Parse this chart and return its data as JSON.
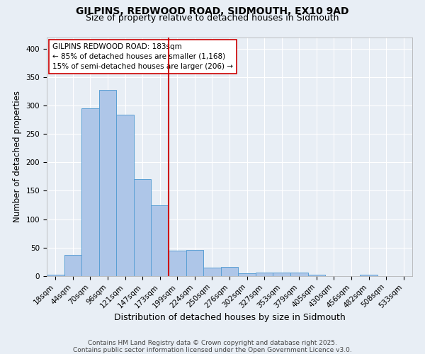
{
  "title": "GILPINS, REDWOOD ROAD, SIDMOUTH, EX10 9AD",
  "subtitle": "Size of property relative to detached houses in Sidmouth",
  "xlabel": "Distribution of detached houses by size in Sidmouth",
  "ylabel": "Number of detached properties",
  "bin_labels": [
    "18sqm",
    "44sqm",
    "70sqm",
    "96sqm",
    "121sqm",
    "147sqm",
    "173sqm",
    "199sqm",
    "224sqm",
    "250sqm",
    "276sqm",
    "302sqm",
    "327sqm",
    "353sqm",
    "379sqm",
    "405sqm",
    "430sqm",
    "456sqm",
    "482sqm",
    "508sqm",
    "533sqm"
  ],
  "bar_values": [
    3,
    37,
    295,
    327,
    284,
    170,
    125,
    45,
    46,
    15,
    16,
    5,
    6,
    6,
    6,
    2,
    0,
    0,
    2,
    0,
    0
  ],
  "bar_color": "#aec6e8",
  "bar_edge_color": "#5a9fd4",
  "vline_color": "#cc0000",
  "vline_pos": 6.5,
  "annotation_box_text": "GILPINS REDWOOD ROAD: 183sqm\n← 85% of detached houses are smaller (1,168)\n15% of semi-detached houses are larger (206) →",
  "annotation_fontsize": 7.5,
  "annotation_box_color": "#ffffff",
  "annotation_box_edgecolor": "#cc0000",
  "footer_text": "Contains HM Land Registry data © Crown copyright and database right 2025.\nContains public sector information licensed under the Open Government Licence v3.0.",
  "background_color": "#e8eef5",
  "ylim": [
    0,
    420
  ],
  "yticks": [
    0,
    50,
    100,
    150,
    200,
    250,
    300,
    350,
    400
  ],
  "grid_color": "#ffffff",
  "title_fontsize": 10,
  "subtitle_fontsize": 9,
  "xlabel_fontsize": 9,
  "ylabel_fontsize": 8.5,
  "tick_fontsize": 7.5,
  "footer_fontsize": 6.5
}
